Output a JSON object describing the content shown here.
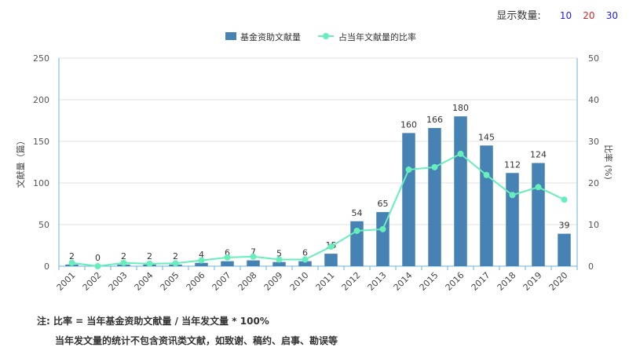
{
  "display_count": {
    "label": "显示数量:",
    "options": [
      {
        "value": "10",
        "color": "#2020ee"
      },
      {
        "value": "20",
        "color": "#e02020"
      },
      {
        "value": "30",
        "color": "#2020ee"
      }
    ]
  },
  "notes": {
    "line1": "注: 比率 = 当年基金资助文献量 / 当年发文量 * 100%",
    "line2": "当年发文量的统计不包含资讯类文献，如致谢、稿约、启事、勘误等"
  },
  "chart_data": {
    "type": "bar+line",
    "categories": [
      "2001",
      "2002",
      "2003",
      "2004",
      "2005",
      "2006",
      "2007",
      "2008",
      "2009",
      "2010",
      "2011",
      "2012",
      "2013",
      "2014",
      "2015",
      "2016",
      "2017",
      "2018",
      "2019",
      "2020"
    ],
    "series": [
      {
        "name": "基金资助文献量",
        "type": "bar",
        "axis": "left",
        "color": "#4682b4",
        "values": [
          2,
          0,
          2,
          2,
          2,
          4,
          6,
          7,
          5,
          6,
          15,
          54,
          65,
          160,
          166,
          180,
          145,
          112,
          124,
          39
        ]
      },
      {
        "name": "占当年文献量的比率",
        "type": "line",
        "axis": "right",
        "color": "#66eebb",
        "values": [
          0.8,
          0,
          0.8,
          0.6,
          0.7,
          1.4,
          2.1,
          2.3,
          1.6,
          1.6,
          4.7,
          8.5,
          8.9,
          23.2,
          23.8,
          27.0,
          21.9,
          17.1,
          19.0,
          16.0
        ]
      }
    ],
    "y_left": {
      "label": "文献量（篇）",
      "range": [
        0,
        250
      ],
      "ticks": [
        "0",
        "50",
        "100",
        "150",
        "200",
        "250"
      ]
    },
    "y_right": {
      "label": "比率 (%)",
      "range": [
        0,
        50
      ],
      "ticks": [
        "0",
        "10",
        "20",
        "30",
        "40",
        "50"
      ]
    },
    "grid": true,
    "legend_position": "top-center"
  }
}
